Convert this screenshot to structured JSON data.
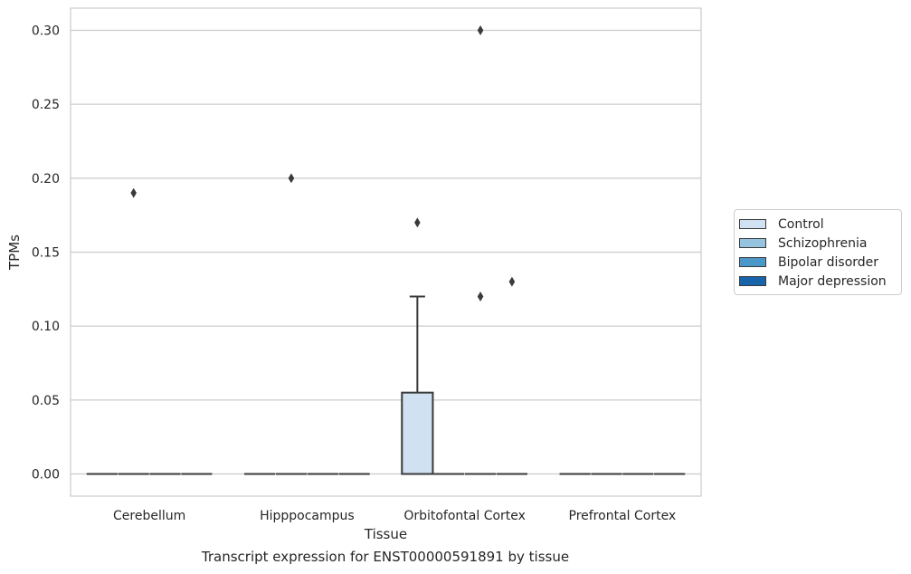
{
  "chart_data": {
    "type": "box",
    "title": "",
    "caption": "Transcript expression for ENST00000591891 by tissue",
    "xlabel": "Tissue",
    "ylabel": "TPMs",
    "ylim": [
      -0.015,
      0.315
    ],
    "yticks": [
      0.0,
      0.05,
      0.1,
      0.15,
      0.2,
      0.25,
      0.3
    ],
    "ytick_labels": [
      "0.00",
      "0.05",
      "0.10",
      "0.15",
      "0.20",
      "0.25",
      "0.30"
    ],
    "grid": "horizontal",
    "legend_position": "right",
    "categories": [
      "Cerebellum",
      "Hipppocampus",
      "Orbitofontal Cortex",
      "Prefrontal Cortex"
    ],
    "series": [
      {
        "name": "Control",
        "color": "#d0e1f2",
        "boxes": [
          {
            "category": "Cerebellum",
            "q1": 0,
            "median": 0,
            "q3": 0,
            "whisker_low": 0,
            "whisker_high": 0,
            "outliers": []
          },
          {
            "category": "Hipppocampus",
            "q1": 0,
            "median": 0,
            "q3": 0,
            "whisker_low": 0,
            "whisker_high": 0,
            "outliers": []
          },
          {
            "category": "Orbitofontal Cortex",
            "q1": 0,
            "median": 0,
            "q3": 0.055,
            "whisker_low": 0,
            "whisker_high": 0.12,
            "outliers": [
              0.17
            ]
          },
          {
            "category": "Prefrontal Cortex",
            "q1": 0,
            "median": 0,
            "q3": 0,
            "whisker_low": 0,
            "whisker_high": 0,
            "outliers": []
          }
        ]
      },
      {
        "name": "Schizophrenia",
        "color": "#94c4df",
        "boxes": [
          {
            "category": "Cerebellum",
            "q1": 0,
            "median": 0,
            "q3": 0,
            "whisker_low": 0,
            "whisker_high": 0,
            "outliers": [
              0.19
            ]
          },
          {
            "category": "Hipppocampus",
            "q1": 0,
            "median": 0,
            "q3": 0,
            "whisker_low": 0,
            "whisker_high": 0,
            "outliers": [
              0.2
            ]
          },
          {
            "category": "Orbitofontal Cortex",
            "q1": 0,
            "median": 0,
            "q3": 0,
            "whisker_low": 0,
            "whisker_high": 0,
            "outliers": []
          },
          {
            "category": "Prefrontal Cortex",
            "q1": 0,
            "median": 0,
            "q3": 0,
            "whisker_low": 0,
            "whisker_high": 0,
            "outliers": []
          }
        ]
      },
      {
        "name": "Bipolar disorder",
        "color": "#4a98c9",
        "boxes": [
          {
            "category": "Cerebellum",
            "q1": 0,
            "median": 0,
            "q3": 0,
            "whisker_low": 0,
            "whisker_high": 0,
            "outliers": []
          },
          {
            "category": "Hipppocampus",
            "q1": 0,
            "median": 0,
            "q3": 0,
            "whisker_low": 0,
            "whisker_high": 0,
            "outliers": []
          },
          {
            "category": "Orbitofontal Cortex",
            "q1": 0,
            "median": 0,
            "q3": 0,
            "whisker_low": 0,
            "whisker_high": 0,
            "outliers": [
              0.3,
              0.12
            ]
          },
          {
            "category": "Prefrontal Cortex",
            "q1": 0,
            "median": 0,
            "q3": 0,
            "whisker_low": 0,
            "whisker_high": 0,
            "outliers": []
          }
        ]
      },
      {
        "name": "Major depression",
        "color": "#1764ab",
        "boxes": [
          {
            "category": "Cerebellum",
            "q1": 0,
            "median": 0,
            "q3": 0,
            "whisker_low": 0,
            "whisker_high": 0,
            "outliers": []
          },
          {
            "category": "Hipppocampus",
            "q1": 0,
            "median": 0,
            "q3": 0,
            "whisker_low": 0,
            "whisker_high": 0,
            "outliers": []
          },
          {
            "category": "Orbitofontal Cortex",
            "q1": 0,
            "median": 0,
            "q3": 0,
            "whisker_low": 0,
            "whisker_high": 0,
            "outliers": [
              0.13
            ]
          },
          {
            "category": "Prefrontal Cortex",
            "q1": 0,
            "median": 0,
            "q3": 0,
            "whisker_low": 0,
            "whisker_high": 0,
            "outliers": []
          }
        ]
      }
    ]
  }
}
